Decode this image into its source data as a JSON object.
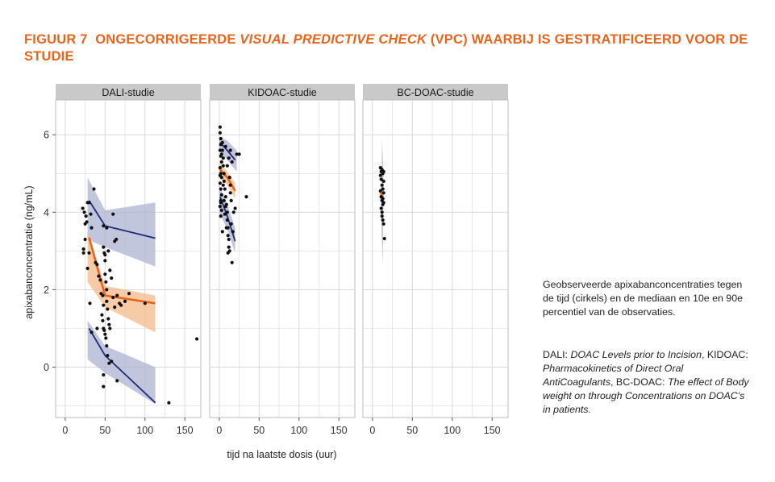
{
  "figure": {
    "label": "FIGUUR 7",
    "title_pre": "ONGECORRIGEERDE ",
    "title_italic": "VISUAL PREDICTIVE CHECK",
    "title_post": " (VPC) WAARBIJ IS GESTRATIFICEERD VOOR DE STUDIE"
  },
  "caption": {
    "p1": "Geobserveerde apixabanconcentraties tegen de tijd (cirkels) en de mediaan en 10e en 90e percentiel van de observaties.",
    "p2_parts": [
      {
        "text": "DALI: ",
        "italic": false
      },
      {
        "text": "DOAC Levels prior to Incision",
        "italic": true
      },
      {
        "text": ", KIDOAC: ",
        "italic": false
      },
      {
        "text": "Pharmacokinetics of Direct Oral AntiCoagulants",
        "italic": true
      },
      {
        "text": ", BC-DOAC: ",
        "italic": false
      },
      {
        "text": "The effect of Body weight on through Concentrations on DOAC's in patients.",
        "italic": true
      }
    ]
  },
  "colors": {
    "accent": "#e8641b",
    "median": "#e8641b",
    "median_band": "#f5b98a",
    "percentile": "#1f2a78",
    "percentile_band": "#aeb3d0",
    "strip": "#c9c9c9",
    "grid": "#d9d9d9",
    "points": "#111111"
  },
  "chart_data": {
    "type": "scatter",
    "xlabel": "tijd na laatste dosis (uur)",
    "ylabel": "apixabanconcentratie (ng/mL)",
    "xlim": [
      -12,
      170
    ],
    "ylim": [
      -1.3,
      6.9
    ],
    "xticks": [
      0,
      50,
      100,
      150
    ],
    "yticks": [
      0,
      2,
      4,
      6
    ],
    "grid": true,
    "panels": [
      {
        "strip": "DALI-studie",
        "points": [
          [
            22,
            4.1
          ],
          [
            24,
            4.0
          ],
          [
            25,
            3.7
          ],
          [
            25,
            3.3
          ],
          [
            23,
            3.05
          ],
          [
            23,
            2.95
          ],
          [
            26,
            3.9
          ],
          [
            27,
            3.75
          ],
          [
            28,
            4.25
          ],
          [
            30,
            4.25
          ],
          [
            32,
            3.95
          ],
          [
            33,
            3.6
          ],
          [
            28,
            2.55
          ],
          [
            30,
            2.95
          ],
          [
            36,
            4.6
          ],
          [
            38,
            2.7
          ],
          [
            40,
            2.65
          ],
          [
            42,
            2.35
          ],
          [
            44,
            2.25
          ],
          [
            45,
            1.9
          ],
          [
            47,
            1.85
          ],
          [
            48,
            3.65
          ],
          [
            48,
            3.1
          ],
          [
            49,
            2.95
          ],
          [
            50,
            2.75
          ],
          [
            50,
            2.4
          ],
          [
            51,
            2.2
          ],
          [
            52,
            2.0
          ],
          [
            52,
            1.7
          ],
          [
            53,
            1.5
          ],
          [
            54,
            1.25
          ],
          [
            55,
            1.1
          ],
          [
            48,
            1.6
          ],
          [
            46,
            1.35
          ],
          [
            47,
            1.2
          ],
          [
            48,
            1.0
          ],
          [
            49,
            0.95
          ],
          [
            50,
            0.85
          ],
          [
            51,
            0.75
          ],
          [
            52,
            0.55
          ],
          [
            53,
            0.3
          ],
          [
            55,
            0.1
          ],
          [
            48,
            -0.2
          ],
          [
            48,
            -0.5
          ],
          [
            50,
            2.9
          ],
          [
            52,
            3.6
          ],
          [
            54,
            3.0
          ],
          [
            56,
            2.5
          ],
          [
            58,
            2.3
          ],
          [
            60,
            3.95
          ],
          [
            62,
            3.25
          ],
          [
            64,
            3.3
          ],
          [
            60,
            1.8
          ],
          [
            62,
            1.55
          ],
          [
            65,
            1.85
          ],
          [
            68,
            1.65
          ],
          [
            70,
            1.6
          ],
          [
            75,
            1.7
          ],
          [
            80,
            1.9
          ],
          [
            65,
            -0.35
          ],
          [
            100,
            1.65
          ],
          [
            130,
            -0.92
          ],
          [
            165,
            0.73
          ],
          [
            31,
            1.65
          ],
          [
            33,
            0.9
          ],
          [
            40,
            1.0
          ],
          [
            58,
            0.15
          ],
          [
            56,
            1.0
          ]
        ],
        "median": [
          [
            30,
            3.35
          ],
          [
            50,
            1.85
          ],
          [
            113,
            1.65
          ]
        ],
        "median_band": [
          [
            28,
            3.5
          ],
          [
            50,
            2.1
          ],
          [
            113,
            1.85
          ],
          [
            113,
            0.9
          ],
          [
            50,
            1.55
          ],
          [
            28,
            2.2
          ]
        ],
        "p10": [
          [
            30,
            1.0
          ],
          [
            50,
            0.3
          ],
          [
            113,
            -0.92
          ]
        ],
        "p90": [
          [
            30,
            4.3
          ],
          [
            50,
            3.65
          ],
          [
            113,
            3.33
          ]
        ],
        "p10_band": [
          [
            28,
            1.2
          ],
          [
            50,
            0.55
          ],
          [
            113,
            0.0
          ],
          [
            113,
            -0.95
          ],
          [
            50,
            -0.15
          ],
          [
            28,
            0.2
          ]
        ],
        "p90_band": [
          [
            28,
            4.9
          ],
          [
            50,
            4.05
          ],
          [
            113,
            4.25
          ],
          [
            113,
            2.6
          ],
          [
            50,
            3.1
          ],
          [
            28,
            3.3
          ]
        ]
      },
      {
        "strip": "KIDOAC-studie",
        "points": [
          [
            1,
            6.2
          ],
          [
            1,
            6.05
          ],
          [
            2,
            5.9
          ],
          [
            2,
            5.75
          ],
          [
            1,
            5.6
          ],
          [
            2,
            5.45
          ],
          [
            3,
            5.3
          ],
          [
            1,
            5.15
          ],
          [
            2,
            5.0
          ],
          [
            3,
            4.9
          ],
          [
            1,
            4.75
          ],
          [
            2,
            4.6
          ],
          [
            3,
            4.45
          ],
          [
            2,
            4.3
          ],
          [
            1,
            4.15
          ],
          [
            3,
            4.05
          ],
          [
            2,
            3.9
          ],
          [
            4,
            5.8
          ],
          [
            4,
            5.6
          ],
          [
            5,
            5.4
          ],
          [
            5,
            5.2
          ],
          [
            6,
            5.0
          ],
          [
            6,
            4.8
          ],
          [
            7,
            4.6
          ],
          [
            8,
            5.7
          ],
          [
            8,
            4.4
          ],
          [
            9,
            4.2
          ],
          [
            10,
            4.0
          ],
          [
            10,
            3.8
          ],
          [
            11,
            3.6
          ],
          [
            11,
            3.4
          ],
          [
            12,
            3.3
          ],
          [
            12,
            3.1
          ],
          [
            13,
            3.0
          ],
          [
            13,
            4.9
          ],
          [
            14,
            4.7
          ],
          [
            14,
            4.5
          ],
          [
            15,
            4.3
          ],
          [
            15,
            3.7
          ],
          [
            16,
            2.7
          ],
          [
            17,
            3.5
          ],
          [
            18,
            4.0
          ],
          [
            20,
            4.1
          ],
          [
            22,
            5.5
          ],
          [
            25,
            5.5
          ],
          [
            34,
            4.4
          ],
          [
            10,
            5.2
          ],
          [
            12,
            5.4
          ],
          [
            14,
            5.6
          ],
          [
            16,
            5.3
          ],
          [
            6,
            4.3
          ],
          [
            7,
            3.95
          ],
          [
            9,
            3.6
          ],
          [
            11,
            2.95
          ],
          [
            4,
            3.5
          ],
          [
            5,
            4.7
          ],
          [
            3,
            5.5
          ],
          [
            1,
            4.95
          ],
          [
            2,
            4.25
          ],
          [
            8,
            4.15
          ]
        ],
        "median": [
          [
            1,
            5.1
          ],
          [
            10,
            4.9
          ],
          [
            20,
            4.55
          ]
        ],
        "median_band": [
          [
            0,
            5.3
          ],
          [
            10,
            5.05
          ],
          [
            20,
            4.75
          ],
          [
            20,
            4.35
          ],
          [
            10,
            4.7
          ],
          [
            0,
            4.9
          ]
        ],
        "p10": [
          [
            1,
            4.4
          ],
          [
            10,
            3.9
          ],
          [
            20,
            3.25
          ]
        ],
        "p90": [
          [
            1,
            5.8
          ],
          [
            10,
            5.6
          ],
          [
            20,
            5.35
          ]
        ],
        "p10_band": [
          [
            0,
            4.7
          ],
          [
            10,
            4.2
          ],
          [
            20,
            3.6
          ],
          [
            20,
            2.95
          ],
          [
            10,
            3.55
          ],
          [
            0,
            4.0
          ]
        ],
        "p90_band": [
          [
            0,
            5.95
          ],
          [
            10,
            5.85
          ],
          [
            22,
            5.6
          ],
          [
            22,
            5.05
          ],
          [
            10,
            5.35
          ],
          [
            0,
            5.6
          ]
        ]
      },
      {
        "strip": "BC-DOAC-studie",
        "points": [
          [
            10,
            5.15
          ],
          [
            11,
            5.05
          ],
          [
            12,
            5.1
          ],
          [
            13,
            5.0
          ],
          [
            14,
            5.05
          ],
          [
            10,
            4.95
          ],
          [
            11,
            4.85
          ],
          [
            12,
            4.7
          ],
          [
            13,
            4.6
          ],
          [
            14,
            4.5
          ],
          [
            11,
            4.4
          ],
          [
            12,
            4.3
          ],
          [
            13,
            4.2
          ],
          [
            11,
            4.1
          ],
          [
            12,
            4.0
          ],
          [
            13,
            4.35
          ],
          [
            14,
            4.25
          ],
          [
            12,
            3.9
          ],
          [
            13,
            3.8
          ],
          [
            14,
            3.7
          ],
          [
            15,
            3.32
          ],
          [
            10,
            4.55
          ],
          [
            14,
            4.8
          ]
        ],
        "median": [
          [
            10,
            4.5
          ],
          [
            14,
            4.35
          ]
        ],
        "median_band": [
          [
            10,
            4.7
          ],
          [
            14,
            4.55
          ],
          [
            14,
            4.15
          ],
          [
            10,
            4.3
          ]
        ],
        "p10": [],
        "p90": [],
        "p10_band": [],
        "p90_band": [
          [
            12,
            5.9
          ],
          [
            14,
            5.0
          ],
          [
            13,
            2.6
          ],
          [
            11,
            3.8
          ]
        ]
      }
    ]
  }
}
